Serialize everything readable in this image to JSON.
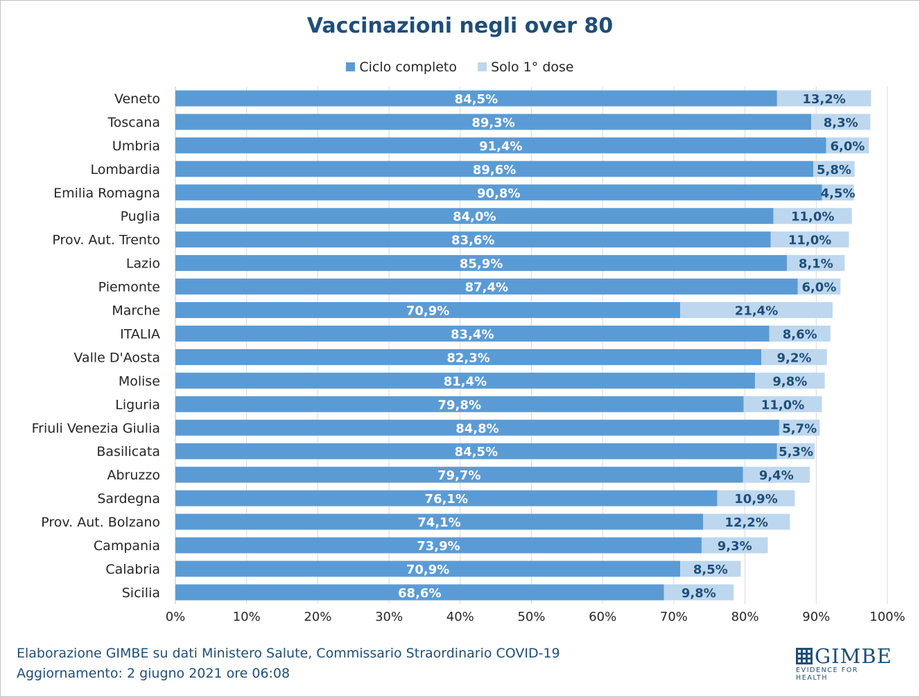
{
  "chart_data": {
    "type": "bar",
    "orientation": "horizontal",
    "stacked": true,
    "title": "Vaccinazioni negli over 80",
    "categories": [
      "Veneto",
      "Toscana",
      "Umbria",
      "Lombardia",
      "Emilia Romagna",
      "Puglia",
      "Prov. Aut. Trento",
      "Lazio",
      "Piemonte",
      "Marche",
      "ITALIA",
      "Valle D'Aosta",
      "Molise",
      "Liguria",
      "Friuli Venezia Giulia",
      "Basilicata",
      "Abruzzo",
      "Sardegna",
      "Prov. Aut. Bolzano",
      "Campania",
      "Calabria",
      "Sicilia"
    ],
    "series": [
      {
        "name": "Ciclo completo",
        "color": "#5b9bd5",
        "values": [
          84.5,
          89.3,
          91.4,
          89.6,
          90.8,
          84.0,
          83.6,
          85.9,
          87.4,
          70.9,
          83.4,
          82.3,
          81.4,
          79.8,
          84.8,
          84.5,
          79.7,
          76.1,
          74.1,
          73.9,
          70.9,
          68.6
        ],
        "labels": [
          "84,5%",
          "89,3%",
          "91,4%",
          "89,6%",
          "90,8%",
          "84,0%",
          "83,6%",
          "85,9%",
          "87,4%",
          "70,9%",
          "83,4%",
          "82,3%",
          "81,4%",
          "79,8%",
          "84,8%",
          "84,5%",
          "79,7%",
          "76,1%",
          "74,1%",
          "73,9%",
          "70,9%",
          "68,6%"
        ]
      },
      {
        "name": "Solo 1° dose",
        "color": "#bdd7ee",
        "values": [
          13.2,
          8.3,
          6.0,
          5.8,
          4.5,
          11.0,
          11.0,
          8.1,
          6.0,
          21.4,
          8.6,
          9.2,
          9.8,
          11.0,
          5.7,
          5.3,
          9.4,
          10.9,
          12.2,
          9.3,
          8.5,
          9.8
        ],
        "labels": [
          "13,2%",
          "8,3%",
          "6,0%",
          "5,8%",
          "4,5%",
          "11,0%",
          "11,0%",
          "8,1%",
          "6,0%",
          "21,4%",
          "8,6%",
          "9,2%",
          "9,8%",
          "11,0%",
          "5,7%",
          "5,3%",
          "9,4%",
          "10,9%",
          "12,2%",
          "9,3%",
          "8,5%",
          "9,8%"
        ]
      }
    ],
    "xlim": [
      0,
      100
    ],
    "xticks": [
      "0%",
      "10%",
      "20%",
      "30%",
      "40%",
      "50%",
      "60%",
      "70%",
      "80%",
      "90%",
      "100%"
    ],
    "grid": true,
    "legend_position": "top"
  },
  "footer": {
    "line1": "Elaborazione GIMBE su dati Ministero Salute, Commissario Straordinario COVID-19",
    "line2": "Aggiornamento: 2 giugno 2021 ore 06:08"
  },
  "logo": {
    "name": "GIMBE",
    "tagline": "EVIDENCE FOR HEALTH"
  },
  "colors": {
    "title": "#1f4e79",
    "label_dark": "#1f4e79",
    "label_light": "#ffffff",
    "grid": "#d9d9d9"
  }
}
